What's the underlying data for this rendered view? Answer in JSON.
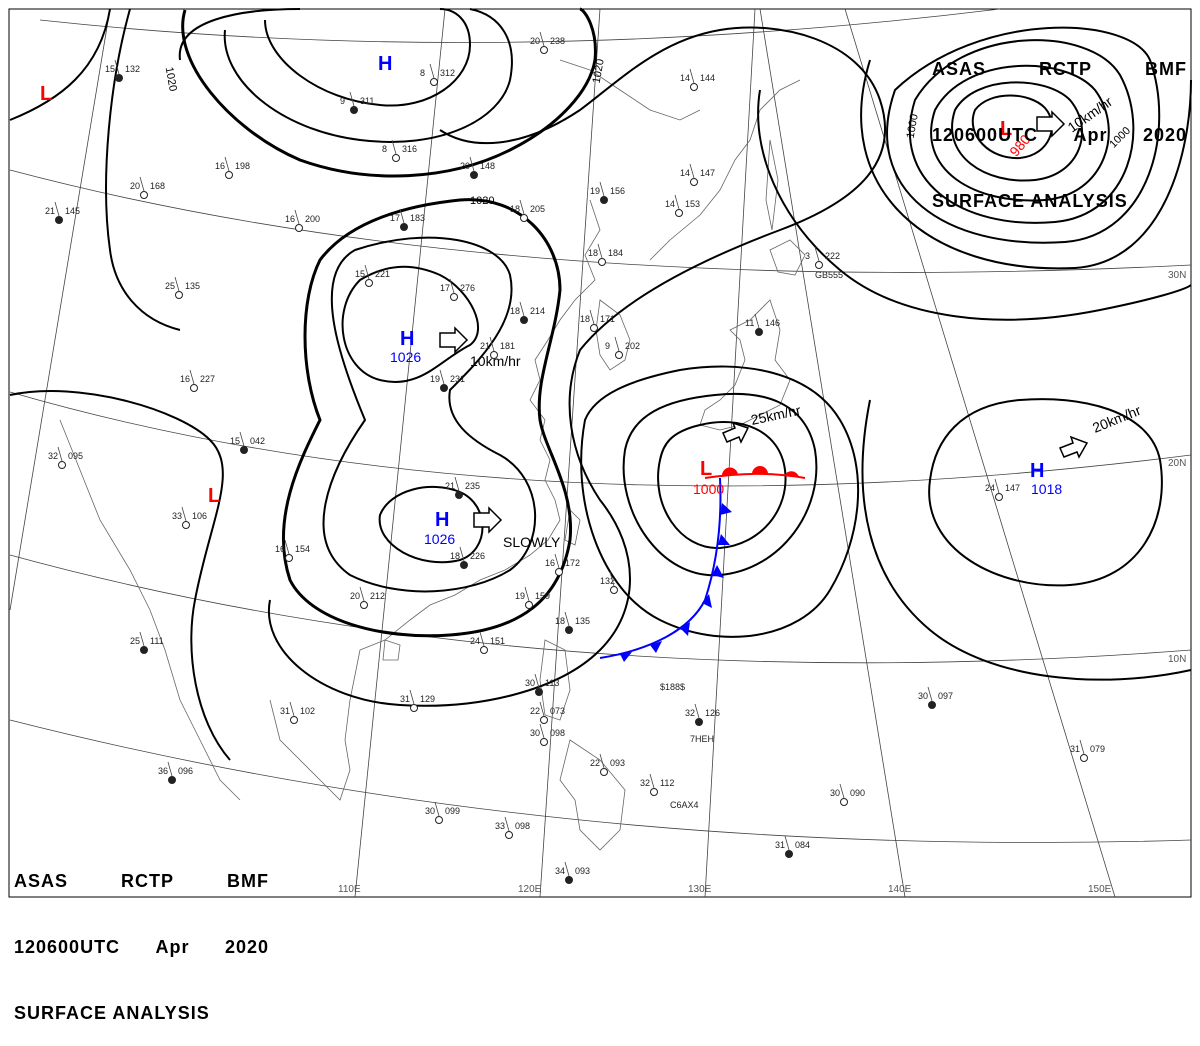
{
  "header": {
    "line1": [
      "ASAS",
      "RCTP",
      "BMF"
    ],
    "line2": [
      "120600UTC",
      "Apr",
      "2020"
    ],
    "line3": "SURFACE ANALYSIS"
  },
  "centers": [
    {
      "type": "H",
      "value": "1026"
    },
    {
      "type": "H",
      "value": "1026"
    },
    {
      "type": "H",
      "value": "1018"
    },
    {
      "type": "L",
      "value": "980"
    },
    {
      "type": "L",
      "value": "1000"
    },
    {
      "type": "L",
      "value": ""
    },
    {
      "type": "H",
      "value": ""
    },
    {
      "type": "L",
      "value": ""
    }
  ],
  "motion_labels": [
    "10km/hr",
    "SLOWLY",
    "25km/hr",
    "20km/hr",
    "10km/hr"
  ],
  "isobar_labels": [
    "1020",
    "1020",
    "1020",
    "1000",
    "1000"
  ],
  "longitude_labels": [
    "110E",
    "120E",
    "130E",
    "140E",
    "150E"
  ],
  "latitude_labels": [
    "30N",
    "20N",
    "10N"
  ],
  "colors": {
    "high": "#0000ff",
    "low": "#ff0000",
    "isobar": "#000000",
    "cold_front": "#0000ff",
    "warm_front": "#ff0000"
  },
  "stations": [
    {
      "id": "s1",
      "t": "15",
      "p": "132"
    },
    {
      "id": "s2",
      "t": "16",
      "p": "198"
    },
    {
      "id": "s3",
      "t": "20",
      "p": "168"
    },
    {
      "id": "s4",
      "t": "21",
      "p": "145"
    },
    {
      "id": "s5",
      "t": "16",
      "p": "200"
    },
    {
      "id": "s6",
      "t": "25",
      "p": "135"
    },
    {
      "id": "s7",
      "t": "17",
      "p": "183"
    },
    {
      "id": "s8",
      "t": "15",
      "p": "221"
    },
    {
      "id": "s9",
      "t": "17",
      "p": "276"
    },
    {
      "id": "s10",
      "t": "20",
      "p": "148"
    },
    {
      "id": "s11",
      "t": "18",
      "p": "205"
    },
    {
      "id": "s12",
      "t": "18",
      "p": "184"
    },
    {
      "id": "s13",
      "t": "19",
      "p": "156"
    },
    {
      "id": "s14",
      "t": "14",
      "p": "153"
    },
    {
      "id": "s15",
      "t": "14",
      "p": "147"
    },
    {
      "id": "s16",
      "t": "18",
      "p": "214"
    },
    {
      "id": "s17",
      "t": "18",
      "p": "171"
    },
    {
      "id": "s18",
      "t": "16",
      "p": "227"
    },
    {
      "id": "s19",
      "t": "19",
      "p": "231"
    },
    {
      "id": "s20",
      "t": "21",
      "p": "181"
    },
    {
      "id": "s21",
      "t": "9",
      "p": "202"
    },
    {
      "id": "s22",
      "t": "15",
      "p": "042"
    },
    {
      "id": "s23",
      "t": "32",
      "p": "095"
    },
    {
      "id": "s24",
      "t": "33",
      "p": "106"
    },
    {
      "id": "s25",
      "t": "21",
      "p": "235"
    },
    {
      "id": "s26",
      "t": "16",
      "p": "154"
    },
    {
      "id": "s27",
      "t": "20",
      "p": "212"
    },
    {
      "id": "s28",
      "t": "18",
      "p": "226"
    },
    {
      "id": "s29",
      "t": "16",
      "p": "172"
    },
    {
      "id": "s30",
      "t": "19",
      "p": "159"
    },
    {
      "id": "s31",
      "t": "18",
      "p": "135"
    },
    {
      "id": "s32",
      "t": "132",
      "p": ""
    },
    {
      "id": "s33",
      "t": "24",
      "p": "151"
    },
    {
      "id": "s34",
      "t": "25",
      "p": "111"
    },
    {
      "id": "s35",
      "t": "31",
      "p": "102"
    },
    {
      "id": "s36",
      "t": "31",
      "p": "129"
    },
    {
      "id": "s37",
      "t": "36",
      "p": "096"
    },
    {
      "id": "s38",
      "t": "30",
      "p": "099"
    },
    {
      "id": "s39",
      "t": "33",
      "p": "098"
    },
    {
      "id": "s40",
      "t": "30",
      "p": "113"
    },
    {
      "id": "s41",
      "t": "22",
      "p": "073"
    },
    {
      "id": "s42",
      "t": "30",
      "p": "098"
    },
    {
      "id": "s43",
      "t": "32",
      "p": "126"
    },
    {
      "id": "s44",
      "t": "32",
      "p": "112"
    },
    {
      "id": "s45",
      "t": "22",
      "p": "093"
    },
    {
      "id": "s46",
      "t": "30",
      "p": "097"
    },
    {
      "id": "s47",
      "t": "31",
      "p": "079"
    },
    {
      "id": "s48",
      "t": "30",
      "p": "090"
    },
    {
      "id": "s49",
      "t": "31",
      "p": "084"
    },
    {
      "id": "s50",
      "t": "24",
      "p": "147"
    },
    {
      "id": "s51",
      "t": "3",
      "p": "222"
    },
    {
      "id": "s52",
      "t": "11",
      "p": "146"
    },
    {
      "id": "s53",
      "t": "20",
      "p": "238"
    },
    {
      "id": "s54",
      "t": "8",
      "p": "312"
    },
    {
      "id": "s55",
      "t": "9",
      "p": "311"
    },
    {
      "id": "s56",
      "t": "8",
      "p": "316"
    },
    {
      "id": "s57",
      "t": "14",
      "p": "144"
    },
    {
      "id": "s58",
      "t": "34",
      "p": "093"
    }
  ],
  "station_ids": [
    "GB555",
    "$188$",
    "7HEH",
    "C6AX4"
  ]
}
